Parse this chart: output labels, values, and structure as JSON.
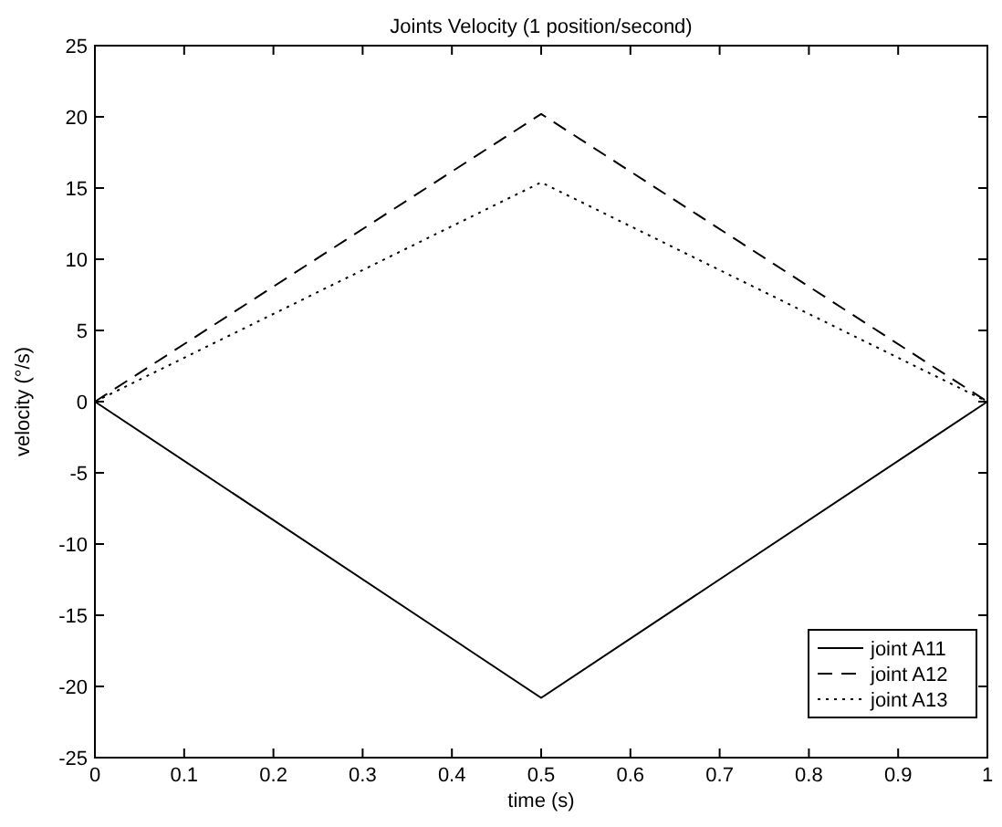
{
  "chart_data": {
    "type": "line",
    "title": "Joints Velocity (1 position/second)",
    "xlabel": "time (s)",
    "ylabel": "velocity (°/s)",
    "x": [
      0,
      0.5,
      1
    ],
    "series": [
      {
        "name": "joint A11",
        "color": "#000000",
        "line_style": "solid",
        "values": [
          0,
          -20.8,
          0
        ]
      },
      {
        "name": "joint A12",
        "color": "#000000",
        "line_style": "dashed",
        "values": [
          0,
          20.2,
          0
        ]
      },
      {
        "name": "joint A13",
        "color": "#000000",
        "line_style": "dotted",
        "values": [
          0,
          15.4,
          0
        ]
      }
    ],
    "xlim": [
      0,
      1
    ],
    "xticks": [
      0,
      0.1,
      0.2,
      0.3,
      0.4,
      0.5,
      0.6,
      0.7,
      0.8,
      0.9,
      1
    ],
    "ylim": [
      -25,
      25
    ],
    "yticks": [
      -25,
      -20,
      -15,
      -10,
      -5,
      0,
      5,
      10,
      15,
      20,
      25
    ],
    "legend": "bottom right",
    "grid": false
  }
}
